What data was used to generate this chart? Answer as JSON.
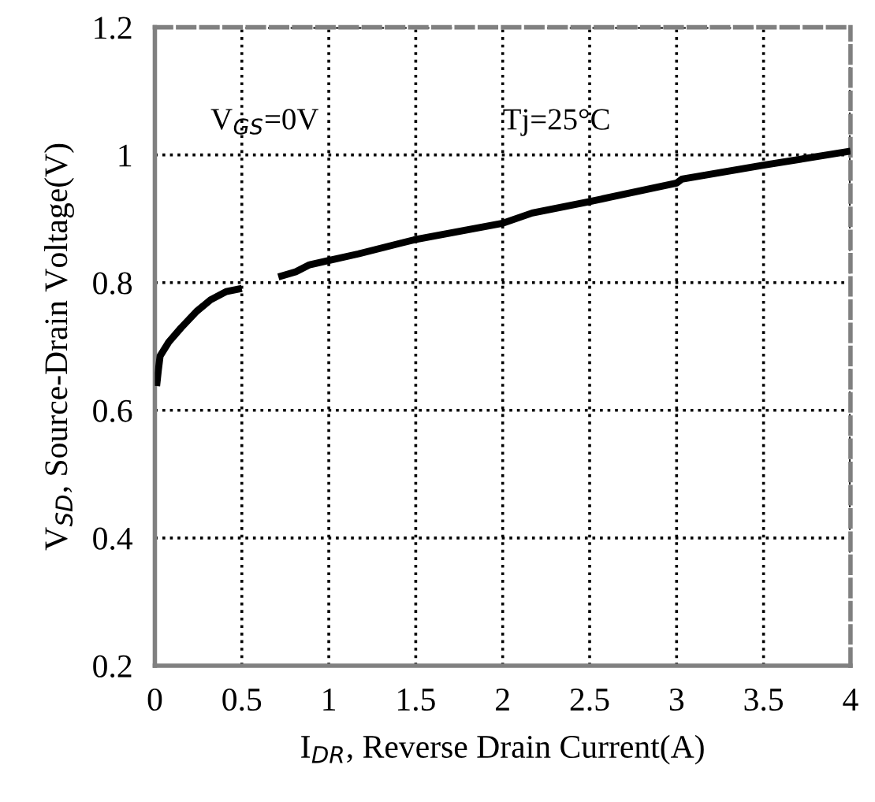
{
  "chart_data": {
    "type": "line",
    "xlabel": "I$_{DR}$, Reverse Drain Current(A)",
    "ylabel": "V$_{SD}$, Source-Drain Voltage(V)",
    "annotations": [
      "V$_{GS}$=0V",
      "Tj=25°C"
    ],
    "x": [
      0.01,
      0.02,
      0.03,
      0.08,
      0.15,
      0.24,
      0.32,
      0.41,
      0.5,
      0.6,
      0.71,
      0.81,
      0.89,
      0.99,
      1.17,
      1.49,
      2.0,
      2.17,
      2.5,
      3.0,
      3.03,
      3.5,
      4.0
    ],
    "series": [
      {
        "color": "#000000",
        "values": [
          0.638,
          0.663,
          0.685,
          0.707,
          0.729,
          0.755,
          0.773,
          0.786,
          0.791,
          null,
          0.809,
          0.817,
          0.828,
          0.834,
          0.845,
          0.867,
          0.893,
          0.909,
          0.927,
          0.956,
          0.962,
          0.984,
          1.006
        ]
      }
    ],
    "xlim": [
      0,
      4
    ],
    "ylim": [
      0.2,
      1.2
    ],
    "xticks": [
      0,
      0.5,
      1,
      1.5,
      2,
      2.5,
      3,
      3.5,
      4
    ],
    "yticks": [
      0.2,
      0.4,
      0.6,
      0.8,
      1,
      1.2
    ],
    "grid": true,
    "line_style": "solid",
    "marker": "none"
  }
}
